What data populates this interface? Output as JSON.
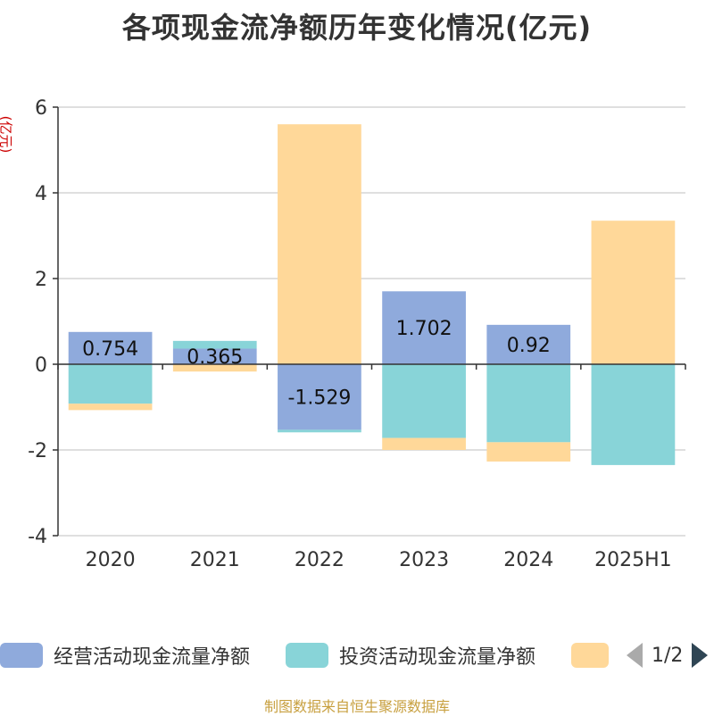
{
  "title": "各项现金流净额历年变化情况(亿元)",
  "unit_label": "(亿元)",
  "legend": {
    "items": [
      {
        "label": "经营活动现金流量净额",
        "color": "#8faadc"
      },
      {
        "label": "投资活动现金流量净额",
        "color": "#88d4d8"
      },
      {
        "label": "",
        "color": "#ffd899"
      }
    ],
    "page_text": "1/2"
  },
  "source": "制图数据来自恒生聚源数据库",
  "chart_data": {
    "type": "bar",
    "stacked": true,
    "categories": [
      "2020",
      "2021",
      "2022",
      "2023",
      "2024",
      "2025H1"
    ],
    "series": [
      {
        "name": "经营活动现金流量净额",
        "color": "#8faadc",
        "values": [
          0.754,
          0.365,
          -1.529,
          1.702,
          0.92,
          -0.002
        ]
      },
      {
        "name": "投资活动现金流量净额",
        "color": "#88d4d8",
        "values": [
          -0.92,
          0.18,
          -0.06,
          -1.72,
          -1.82,
          -2.35
        ]
      },
      {
        "color": "#ffd899",
        "values": [
          -0.15,
          -0.17,
          5.6,
          -0.28,
          -0.45,
          3.35
        ]
      }
    ],
    "data_labels": [
      "0.754",
      "0.365",
      "-1.529",
      "1.702",
      "0.92",
      ""
    ],
    "ylim": [
      -4,
      6
    ],
    "yticks": [
      -4,
      -2,
      0,
      2,
      4,
      6
    ],
    "grid": true
  }
}
